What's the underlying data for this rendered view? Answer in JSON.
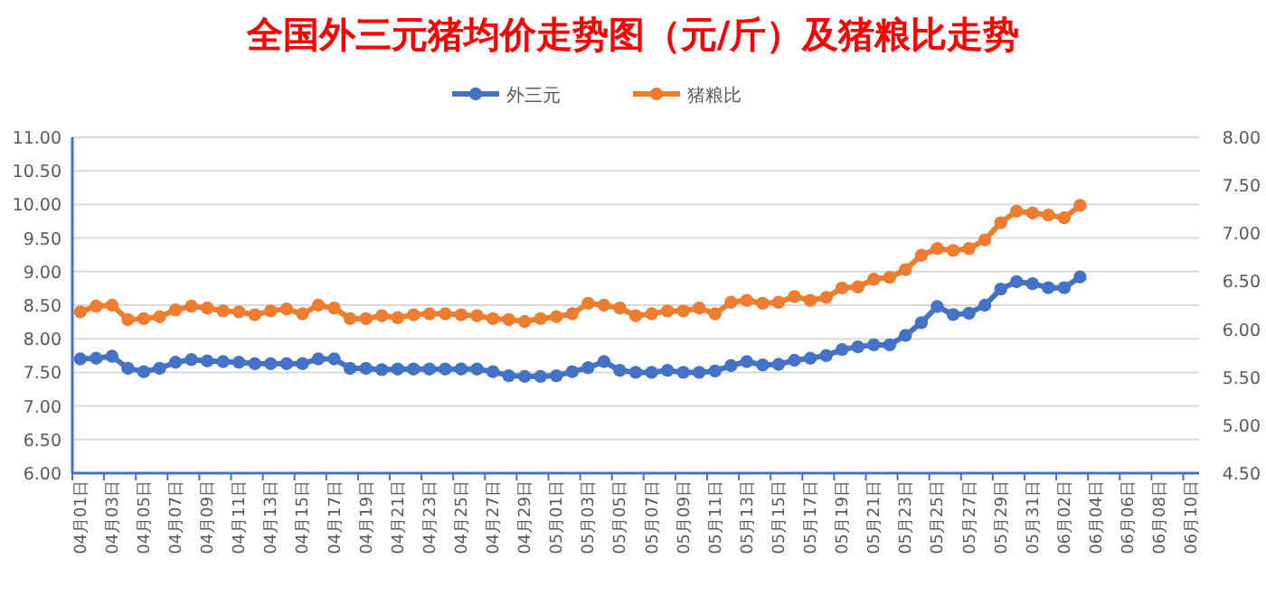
{
  "chart_data": {
    "type": "line",
    "title": "全国外三元猪均价走势图（元/斤）及猪粮比走势",
    "categories": [
      "04月01日",
      null,
      "04月03日",
      null,
      "04月05日",
      null,
      "04月07日",
      null,
      "04月09日",
      null,
      "04月11日",
      null,
      "04月13日",
      null,
      "04月15日",
      null,
      "04月17日",
      null,
      "04月19日",
      null,
      "04月21日",
      null,
      "04月23日",
      null,
      "04月25日",
      null,
      "04月27日",
      null,
      "04月29日",
      null,
      "05月01日",
      null,
      "05月03日",
      null,
      "05月05日",
      null,
      "05月07日",
      null,
      "05月09日",
      null,
      "05月11日",
      null,
      "05月13日",
      null,
      "05月15日",
      null,
      "05月17日",
      null,
      "05月19日",
      null,
      "05月21日",
      null,
      "05月23日",
      null,
      "05月25日",
      null,
      "05月27日",
      null,
      "05月29日",
      null,
      "05月31日",
      null,
      "06月02日",
      null,
      "06月04日",
      null,
      "06月06日",
      null,
      "06月08日",
      null,
      "06月10日"
    ],
    "series": [
      {
        "name": "外三元",
        "color": "#4472c4",
        "values": [
          7.7,
          7.71,
          7.74,
          7.56,
          7.51,
          7.56,
          7.65,
          7.69,
          7.67,
          7.66,
          7.65,
          7.63,
          7.63,
          7.63,
          7.63,
          7.7,
          7.7,
          7.56,
          7.56,
          7.54,
          7.55,
          7.55,
          7.55,
          7.55,
          7.55,
          7.55,
          7.51,
          7.45,
          7.44,
          7.44,
          7.45,
          7.51,
          7.57,
          7.66,
          7.53,
          7.5,
          7.5,
          7.53,
          7.5,
          7.5,
          7.52,
          7.6,
          7.66,
          7.61,
          7.62,
          7.68,
          7.71,
          7.75,
          7.84,
          7.88,
          7.91,
          7.91,
          8.05,
          8.24,
          8.48,
          8.36,
          8.38,
          8.5,
          8.74,
          8.85,
          8.82,
          8.76,
          8.76,
          8.92,
          null,
          null,
          null,
          null,
          null,
          null,
          null
        ]
      },
      {
        "name": "猪粮比",
        "color": "#ed7d31",
        "axis": "y2",
        "values": [
          6.18,
          6.24,
          6.25,
          6.1,
          6.11,
          6.13,
          6.2,
          6.24,
          6.22,
          6.19,
          6.18,
          6.15,
          6.19,
          6.21,
          6.16,
          6.25,
          6.22,
          6.11,
          6.11,
          6.14,
          6.12,
          6.15,
          6.16,
          6.16,
          6.15,
          6.14,
          6.11,
          6.1,
          6.08,
          6.11,
          6.13,
          6.16,
          6.27,
          6.25,
          6.22,
          6.14,
          6.16,
          6.19,
          6.19,
          6.22,
          6.16,
          6.28,
          6.3,
          6.27,
          6.28,
          6.34,
          6.3,
          6.33,
          6.43,
          6.44,
          6.52,
          6.54,
          6.62,
          6.77,
          6.84,
          6.82,
          6.84,
          6.93,
          7.11,
          7.23,
          7.21,
          7.19,
          7.16,
          7.29,
          null,
          null,
          null,
          null,
          null,
          null,
          null
        ]
      }
    ],
    "ylim": [
      6,
      11
    ],
    "yticks": [
      {
        "value": 6,
        "label": "6.00"
      },
      {
        "value": 6.5,
        "label": "6.50"
      },
      {
        "value": 7,
        "label": "7.00"
      },
      {
        "value": 7.5,
        "label": "7.50"
      },
      {
        "value": 8,
        "label": "8.00"
      },
      {
        "value": 8.5,
        "label": "8.50"
      },
      {
        "value": 9,
        "label": "9.00"
      },
      {
        "value": 9.5,
        "label": "9.50"
      },
      {
        "value": 10,
        "label": "10.00"
      },
      {
        "value": 10.5,
        "label": "10.50"
      },
      {
        "value": 11,
        "label": "11.00"
      }
    ],
    "y2lim": [
      4.5,
      8
    ],
    "y2ticks": [
      {
        "value": 4.5,
        "label": "4.50"
      },
      {
        "value": 5,
        "label": "5.00"
      },
      {
        "value": 5.5,
        "label": "5.50"
      },
      {
        "value": 6,
        "label": "6.00"
      },
      {
        "value": 6.5,
        "label": "6.50"
      },
      {
        "value": 7,
        "label": "7.00"
      },
      {
        "value": 7.5,
        "label": "7.50"
      },
      {
        "value": 8,
        "label": "8.00"
      }
    ],
    "grid": "y",
    "legend": "top",
    "marker": "circle",
    "line_style": "solid"
  }
}
